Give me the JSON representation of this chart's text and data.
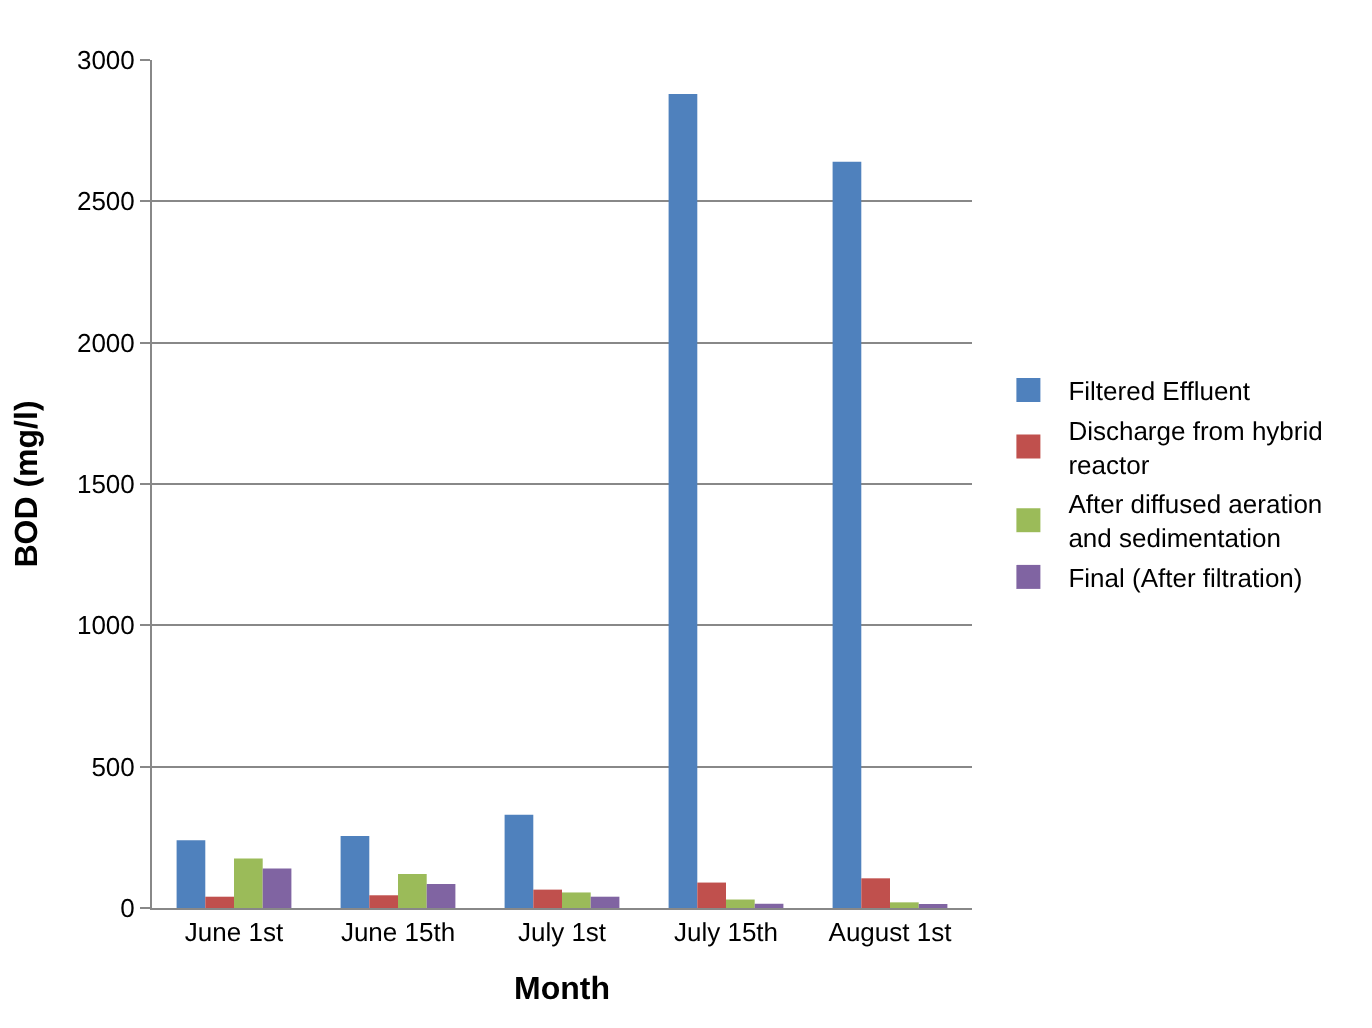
{
  "chart_data": {
    "type": "bar",
    "xlabel": "Month",
    "ylabel": "BOD (mg/l)",
    "categories": [
      "June 1st",
      "June 15th",
      "July 1st",
      "July 15th",
      "August 1st"
    ],
    "series": [
      {
        "name": "Filtered Effluent",
        "color": "#4f81bd",
        "values": [
          240,
          255,
          330,
          2880,
          2640
        ]
      },
      {
        "name": "Discharge from hybrid reactor",
        "color": "#c0504d",
        "values": [
          40,
          45,
          65,
          90,
          105
        ]
      },
      {
        "name": "After diffused aeration and sedimentation",
        "color": "#9bbb59",
        "values": [
          175,
          120,
          55,
          30,
          20
        ]
      },
      {
        "name": "Final (After filtration)",
        "color": "#8064a2",
        "values": [
          140,
          85,
          40,
          15,
          10
        ]
      }
    ],
    "ylim": [
      0,
      3000
    ],
    "yticks": [
      0,
      500,
      1000,
      1500,
      2000,
      2500,
      3000
    ],
    "grid": "y",
    "legend": "right"
  }
}
